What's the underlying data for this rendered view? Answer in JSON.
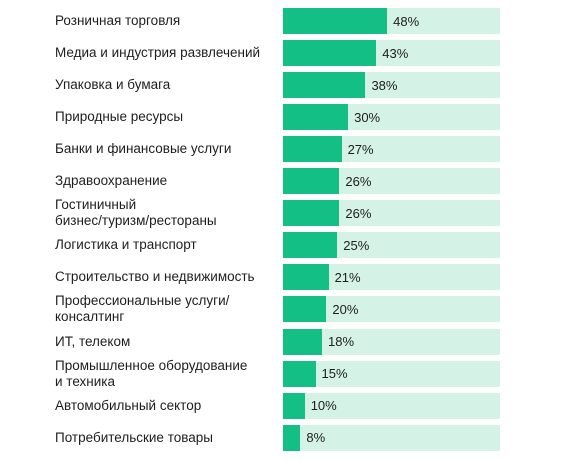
{
  "colors": {
    "bar_fill": "#13bf85",
    "bar_track": "#d4f2e6",
    "text": "#1e1e1e"
  },
  "chart_data": {
    "type": "bar",
    "orientation": "horizontal",
    "categories": [
      "Розничная торговля",
      "Медиа и индустрия развлечений",
      "Упаковка и бумага",
      "Природные ресурсы",
      "Банки и финансовые услуги",
      "Здравоохранение",
      "Гостиничный\nбизнес/туризм/рестораны",
      "Логистика и транспорт",
      "Строительство и недвижимость",
      "Профессиональные услуги/\nконсалтинг",
      "ИТ, телеком",
      "Промышленное оборудование\nи техника",
      "Автомобильный сектор",
      "Потребительские товары"
    ],
    "values": [
      48,
      43,
      38,
      30,
      27,
      26,
      26,
      25,
      21,
      20,
      18,
      15,
      10,
      8
    ],
    "value_labels": [
      "48%",
      "43%",
      "38%",
      "30%",
      "27%",
      "26%",
      "26%",
      "25%",
      "21%",
      "20%",
      "18%",
      "15%",
      "10%",
      "8%"
    ],
    "unit": "%",
    "xlim": [
      0,
      100
    ],
    "grid": false,
    "legend": "none"
  }
}
